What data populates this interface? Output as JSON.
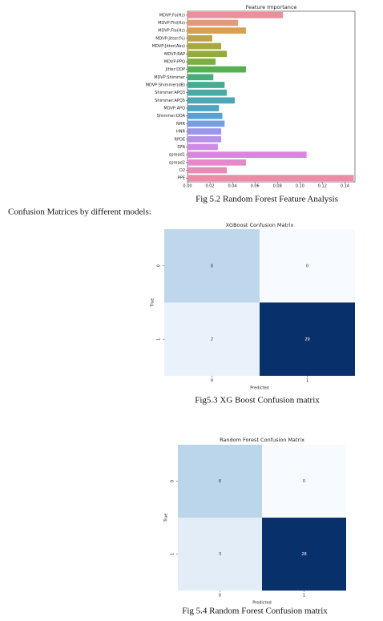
{
  "chart_data": [
    {
      "type": "barh",
      "title": "Feature Importance",
      "caption": "Fig 5.2  Random Forest Feature Analysis",
      "categories": [
        "MDVP:Fo(Hz)",
        "MDVP:Fhi(Hz)",
        "MDVP:Flo(Hz)",
        "MDVP:Jitter(%)",
        "MDVP:Jitter(Abs)",
        "MDVP:RAP",
        "MDVP:PPQ",
        "Jitter:DDP",
        "MDVP:Shimmer",
        "MDVP:Shimmer(dB)",
        "Shimmer:APQ3",
        "Shimmer:APQ5",
        "MDVP:APQ",
        "Shimmer:DDA",
        "NHR",
        "HNR",
        "RPDE",
        "DFA",
        "spread1",
        "spread2",
        "D2",
        "PPE"
      ],
      "values": [
        0.085,
        0.045,
        0.052,
        0.022,
        0.03,
        0.035,
        0.025,
        0.052,
        0.023,
        0.033,
        0.035,
        0.042,
        0.028,
        0.031,
        0.033,
        0.03,
        0.03,
        0.027,
        0.106,
        0.052,
        0.035,
        0.148
      ],
      "colors": [
        "#e8919a",
        "#e59a77",
        "#d8a053",
        "#bda246",
        "#a9a83c",
        "#93ab3c",
        "#7bb03e",
        "#55b04f",
        "#45ae7a",
        "#48ac95",
        "#4aaaa6",
        "#4ba7b4",
        "#4ea4c2",
        "#58a1d4",
        "#7a9ce3",
        "#9a97e8",
        "#b791e7",
        "#cd8be3",
        "#de84dc",
        "#e688cc",
        "#e78bb7",
        "#e98ea6"
      ],
      "xlim": [
        0,
        0.149
      ],
      "xticks": [
        {
          "value": 0,
          "label": "0.00"
        },
        {
          "value": 0.02,
          "label": "0.02"
        },
        {
          "value": 0.04,
          "label": "0.04"
        },
        {
          "value": 0.06,
          "label": "0.06"
        },
        {
          "value": 0.08,
          "label": "0.08"
        },
        {
          "value": 0.1,
          "label": "0.10"
        },
        {
          "value": 0.12,
          "label": "0.12"
        },
        {
          "value": 0.14,
          "label": "0.14"
        }
      ]
    },
    {
      "type": "heatmap",
      "title": "XGBoost Confusion Matrix",
      "caption": "Fig5.3 XG Boost Confusion matrix",
      "x_label": "Predicted",
      "y_label": "True",
      "x_categories": [
        "0",
        "1"
      ],
      "y_categories": [
        "0",
        "1"
      ],
      "values": [
        [
          8,
          0
        ],
        [
          2,
          29
        ]
      ],
      "colormap": "Blues"
    },
    {
      "type": "heatmap",
      "title": "Random Forest Confusion Matrix",
      "caption": "Fig 5.4 Random Forest Confusion matrix",
      "x_label": "Predicted",
      "y_label": "True",
      "x_categories": [
        "0",
        "1"
      ],
      "y_categories": [
        "0",
        "1"
      ],
      "values": [
        [
          8,
          0
        ],
        [
          3,
          28
        ]
      ],
      "colormap": "Blues"
    }
  ],
  "section_text": "Confusion Matrices by different models:"
}
